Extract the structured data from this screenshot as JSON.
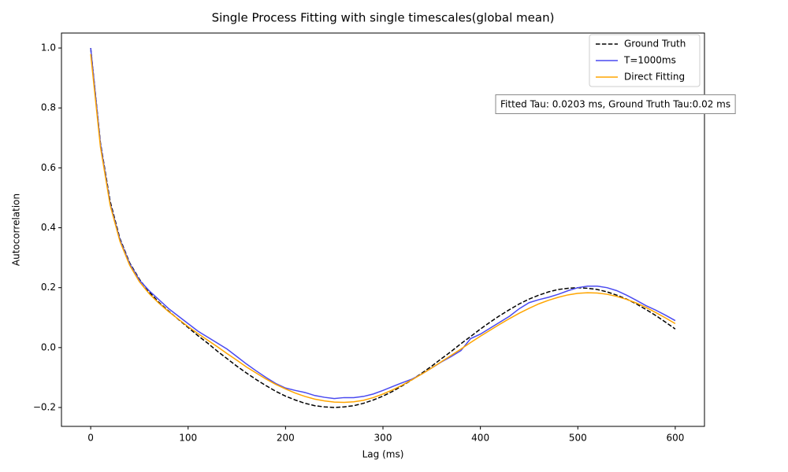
{
  "chart_data": {
    "type": "line",
    "title": "Single Process Fitting with single timescales(global mean)",
    "xlabel": "Lag (ms)",
    "ylabel": "Autocorrelation",
    "annotation": "Fitted Tau: 0.0203 ms, Ground Truth Tau:0.02 ms",
    "legend_loc": "upper right",
    "xlim": [
      -30,
      630
    ],
    "ylim": [
      -0.263,
      1.05
    ],
    "xticks": [
      0,
      100,
      200,
      300,
      400,
      500,
      600
    ],
    "yticks": [
      {
        "value": -0.2,
        "label": "−0.2"
      },
      {
        "value": 0,
        "label": "0.0"
      },
      0.2,
      0.4,
      0.6,
      0.8,
      {
        "value": 1,
        "label": "1.0"
      }
    ],
    "x": [
      0,
      10,
      20,
      30,
      40,
      50,
      60,
      70,
      80,
      90,
      100,
      110,
      120,
      130,
      140,
      150,
      160,
      170,
      180,
      190,
      200,
      210,
      220,
      230,
      240,
      250,
      260,
      270,
      280,
      290,
      300,
      310,
      320,
      330,
      340,
      350,
      360,
      370,
      380,
      390,
      400,
      410,
      420,
      430,
      440,
      450,
      460,
      470,
      480,
      490,
      500,
      510,
      520,
      530,
      540,
      550,
      560,
      570,
      580,
      590,
      600
    ],
    "series": [
      {
        "name": "Ground Truth",
        "color": "#000000",
        "linestyle": "dashed",
        "values": [
          1.0,
          0.684,
          0.488,
          0.364,
          0.283,
          0.228,
          0.186,
          0.151,
          0.122,
          0.094,
          0.067,
          0.04,
          0.015,
          -0.012,
          -0.037,
          -0.062,
          -0.085,
          -0.107,
          -0.127,
          -0.146,
          -0.162,
          -0.175,
          -0.186,
          -0.194,
          -0.198,
          -0.2,
          -0.198,
          -0.194,
          -0.186,
          -0.175,
          -0.162,
          -0.146,
          -0.127,
          -0.107,
          -0.085,
          -0.062,
          -0.037,
          -0.013,
          0.013,
          0.037,
          0.062,
          0.085,
          0.107,
          0.127,
          0.146,
          0.162,
          0.175,
          0.186,
          0.194,
          0.198,
          0.2,
          0.198,
          0.194,
          0.186,
          0.175,
          0.162,
          0.146,
          0.127,
          0.107,
          0.085,
          0.062
        ]
      },
      {
        "name": "T=1000ms",
        "color": "#4a4af0",
        "linestyle": "solid",
        "values": [
          1.0,
          0.68,
          0.48,
          0.36,
          0.28,
          0.225,
          0.19,
          0.16,
          0.13,
          0.105,
          0.08,
          0.055,
          0.035,
          0.015,
          -0.005,
          -0.03,
          -0.055,
          -0.078,
          -0.1,
          -0.12,
          -0.135,
          -0.143,
          -0.15,
          -0.16,
          -0.166,
          -0.17,
          -0.167,
          -0.167,
          -0.163,
          -0.155,
          -0.143,
          -0.13,
          -0.117,
          -0.105,
          -0.088,
          -0.068,
          -0.048,
          -0.03,
          -0.01,
          0.03,
          0.045,
          0.065,
          0.085,
          0.105,
          0.13,
          0.15,
          0.16,
          0.168,
          0.178,
          0.19,
          0.2,
          0.205,
          0.205,
          0.2,
          0.19,
          0.175,
          0.158,
          0.14,
          0.125,
          0.108,
          0.09
        ]
      },
      {
        "name": "Direct Fitting",
        "color": "#ffa500",
        "linestyle": "solid",
        "values": [
          0.98,
          0.67,
          0.475,
          0.355,
          0.275,
          0.22,
          0.18,
          0.148,
          0.12,
          0.095,
          0.07,
          0.047,
          0.025,
          0.003,
          -0.02,
          -0.042,
          -0.065,
          -0.085,
          -0.105,
          -0.123,
          -0.138,
          -0.152,
          -0.163,
          -0.172,
          -0.178,
          -0.182,
          -0.183,
          -0.181,
          -0.176,
          -0.167,
          -0.155,
          -0.141,
          -0.125,
          -0.107,
          -0.088,
          -0.068,
          -0.047,
          -0.026,
          -0.005,
          0.017,
          0.038,
          0.058,
          0.078,
          0.097,
          0.115,
          0.131,
          0.146,
          0.158,
          0.168,
          0.176,
          0.181,
          0.183,
          0.182,
          0.178,
          0.171,
          0.161,
          0.149,
          0.134,
          0.117,
          0.099,
          0.08
        ]
      }
    ]
  }
}
